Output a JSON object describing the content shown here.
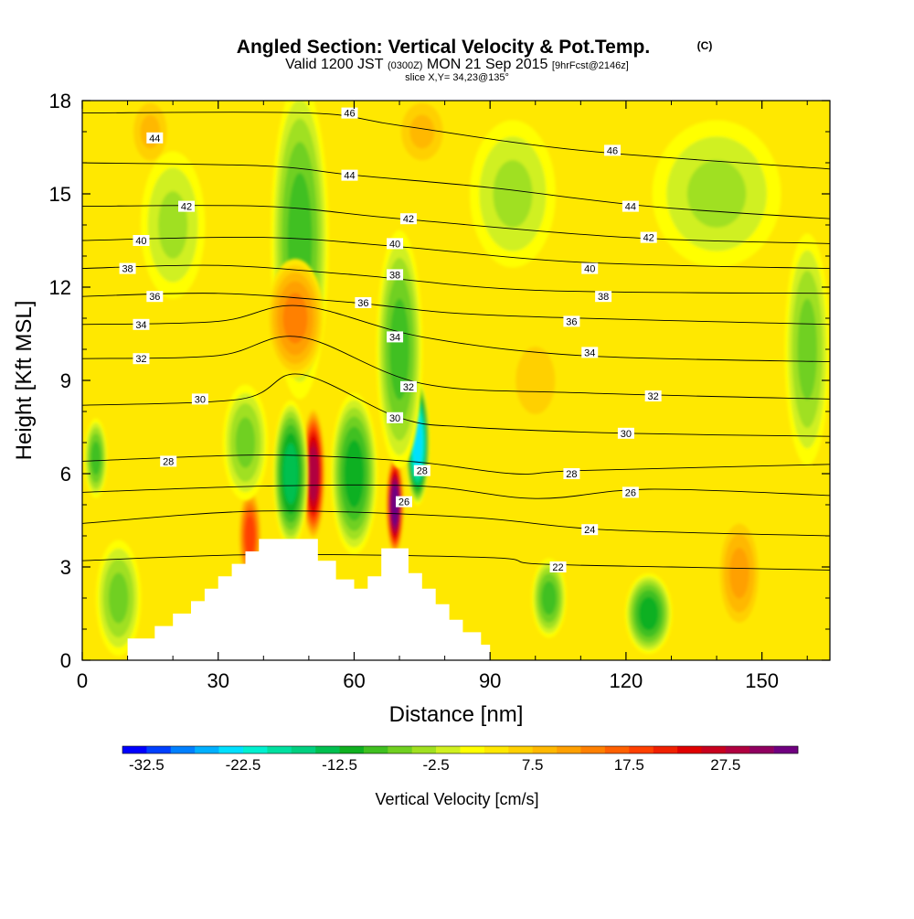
{
  "chart_data": {
    "type": "heatmap",
    "title": "Angled Section: Vertical Velocity & Pot.Temp.",
    "title_mark": "(C)",
    "subtitle": {
      "a": "Valid 1200 JST",
      "b": "(0300Z)",
      "c": "MON 21 Sep 2015",
      "d": "[9hrFcst@2146z]"
    },
    "slice_text": "slice X,Y= 34,23@135°",
    "xlabel": "Distance [nm]",
    "ylabel": "Height [Kft MSL]",
    "xlim": [
      0,
      165
    ],
    "ylim": [
      0,
      18
    ],
    "x_ticks": [
      "0",
      "30",
      "60",
      "90",
      "120",
      "150"
    ],
    "x_tick_values": [
      0,
      30,
      60,
      90,
      120,
      150
    ],
    "y_ticks": [
      "0",
      "3",
      "6",
      "9",
      "12",
      "15",
      "18"
    ],
    "y_tick_values": [
      0,
      3,
      6,
      9,
      12,
      15,
      18
    ],
    "background_value": 2.5,
    "colorbar": {
      "label": "Vertical Velocity [cm/s]",
      "min": -35,
      "max": 35,
      "step": 2.5,
      "tick_labels": [
        "-32.5",
        "-22.5",
        "-12.5",
        "-2.5",
        "7.5",
        "17.5",
        "27.5"
      ],
      "tick_values": [
        -32.5,
        -22.5,
        -12.5,
        -2.5,
        7.5,
        17.5,
        27.5
      ],
      "colors": [
        "#0000ff",
        "#0040ff",
        "#0080ff",
        "#00b0ff",
        "#00e0ff",
        "#00f0d0",
        "#00e0a0",
        "#00d080",
        "#00c050",
        "#10b020",
        "#40c020",
        "#70d020",
        "#a0e020",
        "#d0f020",
        "#ffff00",
        "#ffe800",
        "#ffd000",
        "#ffb800",
        "#ffa000",
        "#ff8000",
        "#ff6000",
        "#ff4000",
        "#f02000",
        "#e00000",
        "#c8001e",
        "#b00040",
        "#900060",
        "#700080"
      ]
    },
    "velocity_cells": [
      {
        "x": 48,
        "y": 15.5,
        "sx": 3,
        "sy": 2.5,
        "v": -18
      },
      {
        "x": 48,
        "y": 13.5,
        "sx": 5,
        "sy": 4,
        "v": -8
      },
      {
        "x": 47,
        "y": 11,
        "sx": 5,
        "sy": 1.5,
        "v": 14
      },
      {
        "x": 15,
        "y": 17,
        "sx": 4,
        "sy": 1,
        "v": 9
      },
      {
        "x": 75,
        "y": 17,
        "sx": 5,
        "sy": 1,
        "v": 8
      },
      {
        "x": 51,
        "y": 6,
        "sx": 2,
        "sy": 1.6,
        "v": 28
      },
      {
        "x": 46,
        "y": 6,
        "sx": 3,
        "sy": 1.8,
        "v": -15
      },
      {
        "x": 60,
        "y": 6,
        "sx": 4,
        "sy": 2,
        "v": -12
      },
      {
        "x": 69,
        "y": 5,
        "sx": 1.5,
        "sy": 1.2,
        "v": 34
      },
      {
        "x": 74,
        "y": 7,
        "sx": 2,
        "sy": 1.5,
        "v": -25
      },
      {
        "x": 70,
        "y": 10,
        "sx": 4,
        "sy": 3,
        "v": -9
      },
      {
        "x": 37,
        "y": 4,
        "sx": 2,
        "sy": 1.2,
        "v": 18
      },
      {
        "x": 36,
        "y": 7,
        "sx": 4,
        "sy": 1.5,
        "v": -7
      },
      {
        "x": 145,
        "y": 2.8,
        "sx": 4,
        "sy": 1.5,
        "v": 12
      },
      {
        "x": 103,
        "y": 2,
        "sx": 3,
        "sy": 1,
        "v": -9
      },
      {
        "x": 125,
        "y": 1.5,
        "sx": 4,
        "sy": 1,
        "v": -11
      },
      {
        "x": 8,
        "y": 2,
        "sx": 4,
        "sy": 1.5,
        "v": -7
      },
      {
        "x": 3,
        "y": 6.5,
        "sx": 2,
        "sy": 1,
        "v": -8
      },
      {
        "x": 20,
        "y": 14,
        "sx": 6,
        "sy": 2,
        "v": -4
      },
      {
        "x": 95,
        "y": 15,
        "sx": 8,
        "sy": 2,
        "v": -4
      },
      {
        "x": 140,
        "y": 15,
        "sx": 12,
        "sy": 2,
        "v": -5
      },
      {
        "x": 100,
        "y": 9,
        "sx": 8,
        "sy": 2,
        "v": 5
      },
      {
        "x": 160,
        "y": 10,
        "sx": 4,
        "sy": 3,
        "v": -6
      }
    ],
    "theta_contours": [
      {
        "level": 22,
        "points": [
          [
            0,
            3.2
          ],
          [
            40,
            3.4
          ],
          [
            90,
            3.3
          ],
          [
            100,
            3.1
          ],
          [
            130,
            3.0
          ],
          [
            165,
            2.9
          ]
        ]
      },
      {
        "level": 24,
        "points": [
          [
            0,
            4.4
          ],
          [
            40,
            4.8
          ],
          [
            85,
            4.6
          ],
          [
            115,
            4.2
          ],
          [
            165,
            4.0
          ]
        ]
      },
      {
        "level": 26,
        "points": [
          [
            0,
            5.4
          ],
          [
            40,
            5.6
          ],
          [
            75,
            5.6
          ],
          [
            100,
            5.2
          ],
          [
            125,
            5.5
          ],
          [
            165,
            5.3
          ]
        ]
      },
      {
        "level": 28,
        "points": [
          [
            0,
            6.4
          ],
          [
            40,
            6.6
          ],
          [
            72,
            6.4
          ],
          [
            95,
            6.0
          ],
          [
            110,
            6.1
          ],
          [
            165,
            6.3
          ]
        ]
      },
      {
        "level": 30,
        "points": [
          [
            0,
            8.2
          ],
          [
            35,
            8.4
          ],
          [
            48,
            9.2
          ],
          [
            70,
            7.8
          ],
          [
            85,
            7.5
          ],
          [
            120,
            7.3
          ],
          [
            165,
            7.2
          ]
        ]
      },
      {
        "level": 32,
        "points": [
          [
            0,
            9.7
          ],
          [
            30,
            9.8
          ],
          [
            48,
            10.4
          ],
          [
            75,
            8.9
          ],
          [
            110,
            8.6
          ],
          [
            165,
            8.4
          ]
        ]
      },
      {
        "level": 34,
        "points": [
          [
            0,
            10.8
          ],
          [
            30,
            10.9
          ],
          [
            48,
            11.4
          ],
          [
            75,
            10.4
          ],
          [
            110,
            9.8
          ],
          [
            165,
            9.6
          ]
        ]
      },
      {
        "level": 36,
        "points": [
          [
            0,
            11.7
          ],
          [
            30,
            11.8
          ],
          [
            60,
            11.5
          ],
          [
            90,
            11.1
          ],
          [
            165,
            10.8
          ]
        ]
      },
      {
        "level": 38,
        "points": [
          [
            0,
            12.6
          ],
          [
            30,
            12.7
          ],
          [
            60,
            12.4
          ],
          [
            100,
            11.9
          ],
          [
            165,
            11.8
          ]
        ]
      },
      {
        "level": 40,
        "points": [
          [
            0,
            13.5
          ],
          [
            40,
            13.6
          ],
          [
            70,
            13.3
          ],
          [
            110,
            12.8
          ],
          [
            165,
            12.6
          ]
        ]
      },
      {
        "level": 42,
        "points": [
          [
            0,
            14.6
          ],
          [
            40,
            14.6
          ],
          [
            70,
            14.2
          ],
          [
            120,
            13.6
          ],
          [
            165,
            13.4
          ]
        ]
      },
      {
        "level": 44,
        "points": [
          [
            0,
            16.0
          ],
          [
            40,
            15.9
          ],
          [
            60,
            15.6
          ],
          [
            90,
            15.2
          ],
          [
            125,
            14.6
          ],
          [
            165,
            14.2
          ]
        ]
      },
      {
        "level": 46,
        "points": [
          [
            0,
            17.6
          ],
          [
            50,
            17.6
          ],
          [
            70,
            17.2
          ],
          [
            110,
            16.4
          ],
          [
            165,
            15.8
          ]
        ]
      }
    ],
    "contour_labels": [
      {
        "text": "46",
        "x": 59,
        "y": 17.6
      },
      {
        "text": "44",
        "x": 16,
        "y": 16.8
      },
      {
        "text": "44",
        "x": 59,
        "y": 15.6
      },
      {
        "text": "46",
        "x": 117,
        "y": 16.4
      },
      {
        "text": "42",
        "x": 23,
        "y": 14.6
      },
      {
        "text": "44",
        "x": 121,
        "y": 14.6
      },
      {
        "text": "42",
        "x": 72,
        "y": 14.2
      },
      {
        "text": "40",
        "x": 13,
        "y": 13.5
      },
      {
        "text": "40",
        "x": 69,
        "y": 13.4
      },
      {
        "text": "42",
        "x": 125,
        "y": 13.6
      },
      {
        "text": "38",
        "x": 10,
        "y": 12.6
      },
      {
        "text": "38",
        "x": 69,
        "y": 12.4
      },
      {
        "text": "40",
        "x": 112,
        "y": 12.6
      },
      {
        "text": "36",
        "x": 16,
        "y": 11.7
      },
      {
        "text": "36",
        "x": 62,
        "y": 11.5
      },
      {
        "text": "38",
        "x": 115,
        "y": 11.7
      },
      {
        "text": "34",
        "x": 13,
        "y": 10.8
      },
      {
        "text": "36",
        "x": 108,
        "y": 10.9
      },
      {
        "text": "34",
        "x": 69,
        "y": 10.4
      },
      {
        "text": "32",
        "x": 13,
        "y": 9.7
      },
      {
        "text": "34",
        "x": 112,
        "y": 9.9
      },
      {
        "text": "32",
        "x": 72,
        "y": 8.8
      },
      {
        "text": "32",
        "x": 126,
        "y": 8.5
      },
      {
        "text": "30",
        "x": 26,
        "y": 8.4
      },
      {
        "text": "30",
        "x": 69,
        "y": 7.8
      },
      {
        "text": "30",
        "x": 120,
        "y": 7.3
      },
      {
        "text": "28",
        "x": 19,
        "y": 6.4
      },
      {
        "text": "28",
        "x": 75,
        "y": 6.1
      },
      {
        "text": "28",
        "x": 108,
        "y": 6.0
      },
      {
        "text": "26",
        "x": 71,
        "y": 5.1
      },
      {
        "text": "26",
        "x": 121,
        "y": 5.4
      },
      {
        "text": "24",
        "x": 112,
        "y": 4.2
      },
      {
        "text": "22",
        "x": 105,
        "y": 3.0
      }
    ],
    "terrain_profile": [
      [
        10,
        0
      ],
      [
        10,
        0.7
      ],
      [
        16,
        0.7
      ],
      [
        16,
        1.1
      ],
      [
        20,
        1.1
      ],
      [
        20,
        1.5
      ],
      [
        24,
        1.5
      ],
      [
        24,
        1.9
      ],
      [
        27,
        1.9
      ],
      [
        27,
        2.3
      ],
      [
        30,
        2.3
      ],
      [
        30,
        2.7
      ],
      [
        33,
        2.7
      ],
      [
        33,
        3.1
      ],
      [
        36,
        3.1
      ],
      [
        36,
        3.5
      ],
      [
        39,
        3.5
      ],
      [
        39,
        3.9
      ],
      [
        52,
        3.9
      ],
      [
        52,
        3.2
      ],
      [
        56,
        3.2
      ],
      [
        56,
        2.6
      ],
      [
        60,
        2.6
      ],
      [
        60,
        2.3
      ],
      [
        63,
        2.3
      ],
      [
        63,
        2.7
      ],
      [
        66,
        2.7
      ],
      [
        66,
        3.6
      ],
      [
        72,
        3.6
      ],
      [
        72,
        2.8
      ],
      [
        75,
        2.8
      ],
      [
        75,
        2.3
      ],
      [
        78,
        2.3
      ],
      [
        78,
        1.8
      ],
      [
        81,
        1.8
      ],
      [
        81,
        1.3
      ],
      [
        84,
        1.3
      ],
      [
        84,
        0.9
      ],
      [
        88,
        0.9
      ],
      [
        88,
        0.5
      ],
      [
        90,
        0.5
      ],
      [
        90,
        0
      ]
    ]
  }
}
